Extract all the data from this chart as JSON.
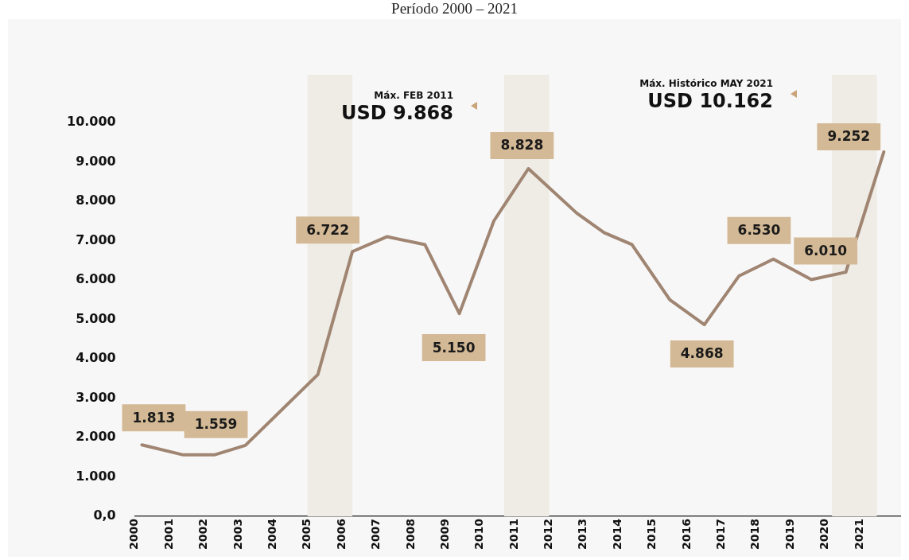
{
  "chart_data": {
    "type": "line",
    "title": "Período 2000 – 2021",
    "x": [
      2000.2,
      2001.4,
      2002.3,
      2003.2,
      2005.3,
      2006.3,
      2007.3,
      2008.4,
      2009.4,
      2010.4,
      2011.4,
      2012.8,
      2013.6,
      2014.4,
      2015.5,
      2016.5,
      2017.5,
      2018.5,
      2019.6,
      2020.6,
      2021.7
    ],
    "series": [
      {
        "color": "#9f8572",
        "values": [
          1813,
          1559,
          1559,
          1800,
          3600,
          6722,
          7100,
          6900,
          5150,
          7500,
          8828,
          7700,
          7200,
          6900,
          5500,
          4868,
          6100,
          6530,
          6010,
          6200,
          9252
        ]
      }
    ],
    "xlim": [
      2000,
      2022.2
    ],
    "xticks": [
      2000,
      2001,
      2002,
      2003,
      2004,
      2005,
      2006,
      2007,
      2008,
      2009,
      2010,
      2011,
      2012,
      2013,
      2014,
      2015,
      2016,
      2017,
      2018,
      2019,
      2020,
      2021
    ],
    "ylim": [
      0,
      10000
    ],
    "yticks": [
      {
        "value": 0,
        "label": "0,0"
      },
      {
        "value": 1000,
        "label": "1.000"
      },
      {
        "value": 2000,
        "label": "2.000"
      },
      {
        "value": 3000,
        "label": "3.000"
      },
      {
        "value": 4000,
        "label": "4.000"
      },
      {
        "value": 5000,
        "label": "5.000"
      },
      {
        "value": 6000,
        "label": "6.000"
      },
      {
        "value": 7000,
        "label": "7.000"
      },
      {
        "value": 8000,
        "label": "8.000"
      },
      {
        "value": 9000,
        "label": "9.000"
      },
      {
        "value": 10000,
        "label": "10.000"
      }
    ],
    "bands": [
      {
        "axis": "x",
        "from": 2005,
        "to": 2006.3,
        "color": "#efece5"
      },
      {
        "axis": "x",
        "from": 2010.7,
        "to": 2012,
        "color": "#efece5"
      },
      {
        "axis": "x",
        "from": 2020.2,
        "to": 2021.5,
        "color": "#efece5"
      }
    ],
    "annotations": [
      {
        "text": "1.813",
        "x": 2000.2,
        "y": 1813
      },
      {
        "text": "1.559",
        "x": 2002.3,
        "y": 1559
      },
      {
        "text": "6.722",
        "x": 2006.3,
        "y": 6722
      },
      {
        "text": "5.150",
        "x": 2009.4,
        "y": 5150
      },
      {
        "text": "8.828",
        "x": 2011.4,
        "y": 8828
      },
      {
        "text": "4.868",
        "x": 2016.5,
        "y": 4868
      },
      {
        "text": "6.530",
        "x": 2018.5,
        "y": 6530
      },
      {
        "text": "6.010",
        "x": 2019.6,
        "y": 6010
      },
      {
        "text": "9.252",
        "x": 2021.7,
        "y": 9252
      },
      "Máx. FEB 2011\nUSD 9.868",
      "Máx. Histórico MAY 2021\nUSD 10.162"
    ],
    "grid": false,
    "legend": false,
    "marker": "none",
    "line_style": "solid"
  }
}
